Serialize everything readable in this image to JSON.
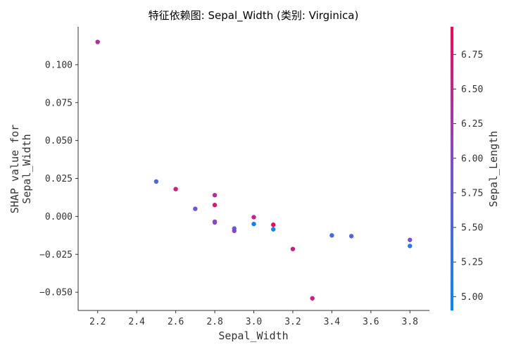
{
  "chart_data": {
    "type": "scatter",
    "title": "特征依赖图: Sepal_Width (类别: Virginica)",
    "xlabel": "Sepal_Width",
    "ylabel_lines": [
      "SHAP value for",
      "Sepal_Width"
    ],
    "colorbar_label": "Sepal_Length",
    "xlim": [
      2.1,
      3.9
    ],
    "ylim": [
      -0.062,
      0.125
    ],
    "x_ticks": [
      2.2,
      2.4,
      2.6,
      2.8,
      3.0,
      3.2,
      3.4,
      3.6,
      3.8
    ],
    "x_tick_labels": [
      "2.2",
      "2.4",
      "2.6",
      "2.8",
      "3.0",
      "3.2",
      "3.4",
      "3.6",
      "3.8"
    ],
    "y_ticks": [
      0.1,
      0.075,
      0.05,
      0.025,
      0.0,
      -0.025,
      -0.05
    ],
    "y_tick_labels": [
      "0.100",
      "0.075",
      "0.050",
      "0.025",
      "0.000",
      "−0.025",
      "−0.050"
    ],
    "color_range": [
      4.9,
      6.95
    ],
    "colorbar_ticks": [
      5.0,
      5.25,
      5.5,
      5.75,
      6.0,
      6.25,
      6.5,
      6.75
    ],
    "colorbar_tick_labels": [
      "5.00",
      "5.25",
      "5.50",
      "5.75",
      "6.00",
      "6.25",
      "6.50",
      "6.75"
    ],
    "colormap": [
      "#008afb",
      "#7b4ed8",
      "#ff0051"
    ],
    "grid": false,
    "legend": "colorbar-right",
    "points": [
      {
        "x": 2.2,
        "y": 0.115,
        "c": 6.4
      },
      {
        "x": 2.5,
        "y": 0.023,
        "c": 5.6
      },
      {
        "x": 2.6,
        "y": 0.018,
        "c": 6.6
      },
      {
        "x": 2.7,
        "y": 0.005,
        "c": 5.85
      },
      {
        "x": 2.8,
        "y": 0.014,
        "c": 6.4
      },
      {
        "x": 2.8,
        "y": 0.0075,
        "c": 6.7
      },
      {
        "x": 2.8,
        "y": -0.0035,
        "c": 6.15
      },
      {
        "x": 2.8,
        "y": -0.004,
        "c": 6.0
      },
      {
        "x": 2.9,
        "y": -0.008,
        "c": 5.6
      },
      {
        "x": 2.9,
        "y": -0.0095,
        "c": 6.1
      },
      {
        "x": 3.0,
        "y": -0.0005,
        "c": 6.5
      },
      {
        "x": 3.0,
        "y": -0.005,
        "c": 5.0
      },
      {
        "x": 3.1,
        "y": -0.0055,
        "c": 6.9
      },
      {
        "x": 3.1,
        "y": -0.0085,
        "c": 4.95
      },
      {
        "x": 3.2,
        "y": -0.0215,
        "c": 6.6
      },
      {
        "x": 3.3,
        "y": -0.054,
        "c": 6.5
      },
      {
        "x": 3.4,
        "y": -0.0125,
        "c": 5.5
      },
      {
        "x": 3.5,
        "y": -0.013,
        "c": 5.6
      },
      {
        "x": 3.8,
        "y": -0.0155,
        "c": 5.9
      },
      {
        "x": 3.8,
        "y": -0.0195,
        "c": 5.2
      }
    ]
  }
}
